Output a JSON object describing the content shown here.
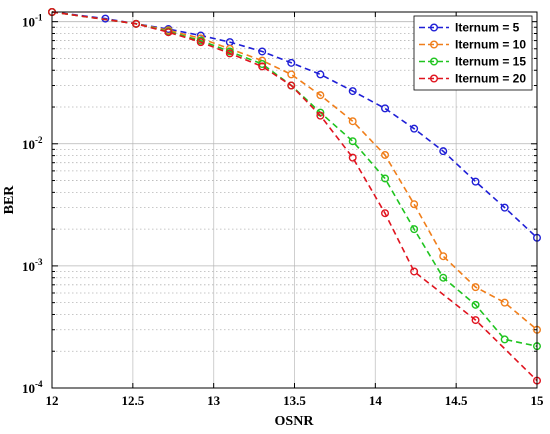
{
  "chart_data": {
    "type": "line",
    "title": "",
    "xlabel": "OSNR",
    "ylabel": "BER",
    "xlim": [
      12,
      15
    ],
    "ylim": [
      0.0001,
      0.12
    ],
    "yscale": "log",
    "grid": true,
    "legend_position": "top-right",
    "x_ticks": [
      "12",
      "12.5",
      "13",
      "13.5",
      "14",
      "14.5",
      "15"
    ],
    "y_ticks": [
      {
        "base": "10",
        "exp": "-4",
        "value": 0.0001
      },
      {
        "base": "10",
        "exp": "-3",
        "value": 0.001
      },
      {
        "base": "10",
        "exp": "-2",
        "value": 0.01
      },
      {
        "base": "10",
        "exp": "-1",
        "value": 0.1
      }
    ],
    "series": [
      {
        "name": "Iternum = 5",
        "color": "#1f1fd6",
        "x": [
          12,
          12.33,
          12.52,
          12.72,
          12.92,
          13.1,
          13.3,
          13.48,
          13.66,
          13.86,
          14.06,
          14.24,
          14.42,
          14.62,
          14.8,
          15
        ],
        "y": [
          0.12,
          0.106,
          0.096,
          0.087,
          0.077,
          0.068,
          0.057,
          0.046,
          0.037,
          0.027,
          0.0195,
          0.0133,
          0.0087,
          0.0049,
          0.003,
          0.0017
        ]
      },
      {
        "name": "Iternum = 10",
        "color": "#f07e1a",
        "x": [
          12,
          12.52,
          12.72,
          12.92,
          13.1,
          13.3,
          13.48,
          13.66,
          13.86,
          14.06,
          14.24,
          14.42,
          14.62,
          14.8,
          15
        ],
        "y": [
          0.12,
          0.096,
          0.085,
          0.073,
          0.06,
          0.048,
          0.037,
          0.025,
          0.0153,
          0.0081,
          0.0032,
          0.0012,
          0.00067,
          0.0005,
          0.0003
        ]
      },
      {
        "name": "Iternum = 15",
        "color": "#1fc41f",
        "x": [
          12,
          12.52,
          12.72,
          12.92,
          13.1,
          13.3,
          13.48,
          13.66,
          13.86,
          14.06,
          14.24,
          14.42,
          14.62,
          14.8,
          15
        ],
        "y": [
          0.12,
          0.096,
          0.083,
          0.07,
          0.057,
          0.045,
          0.03,
          0.018,
          0.0105,
          0.0052,
          0.002,
          0.0008,
          0.00048,
          0.00025,
          0.00022
        ]
      },
      {
        "name": "Iternum = 20",
        "color": "#e0141f",
        "x": [
          12,
          12.52,
          12.72,
          12.92,
          13.1,
          13.3,
          13.48,
          13.66,
          13.86,
          14.06,
          14.24,
          14.62,
          15
        ],
        "y": [
          0.12,
          0.096,
          0.082,
          0.068,
          0.055,
          0.043,
          0.03,
          0.017,
          0.0077,
          0.0027,
          0.0009,
          0.00036,
          0.000115
        ]
      }
    ]
  }
}
